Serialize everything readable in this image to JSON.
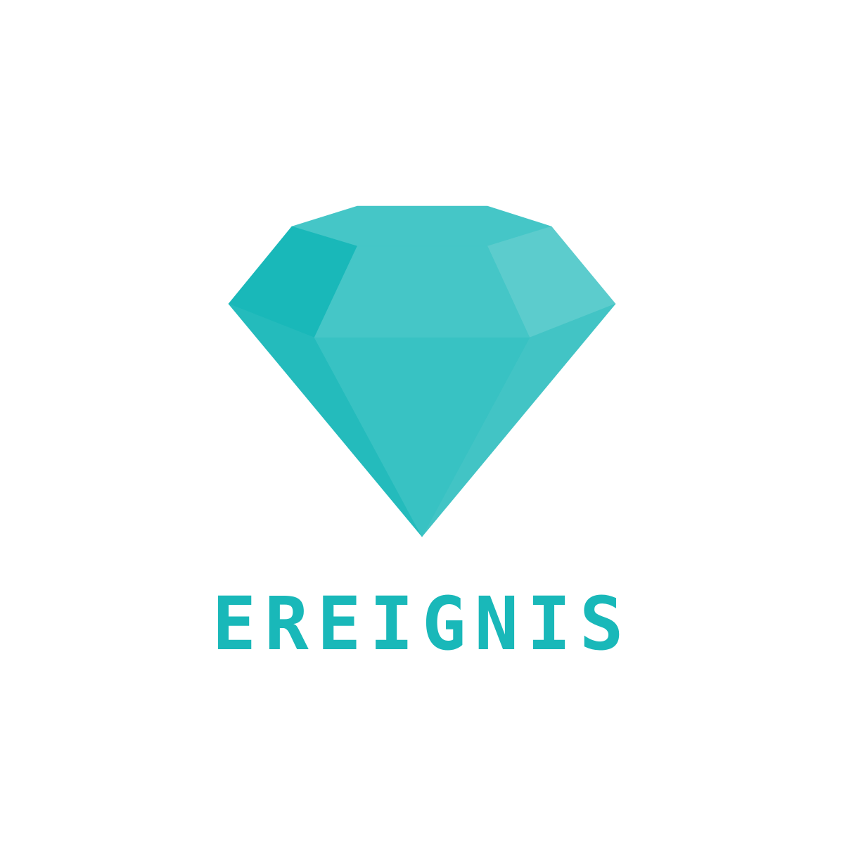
{
  "logo": {
    "icon": "diamond-icon",
    "brand_name": "EREIGNIS",
    "colors": {
      "primary": "#19b8b9",
      "facet_top": "#45c6c7",
      "facet_top_left": "#19b8b9",
      "facet_top_right": "#5ccccd",
      "facet_table": "#45c6c7",
      "facet_center": "#38c2c3",
      "facet_left": "#24bbbc",
      "facet_right": "#42c4c5",
      "background": "#ffffff"
    }
  }
}
